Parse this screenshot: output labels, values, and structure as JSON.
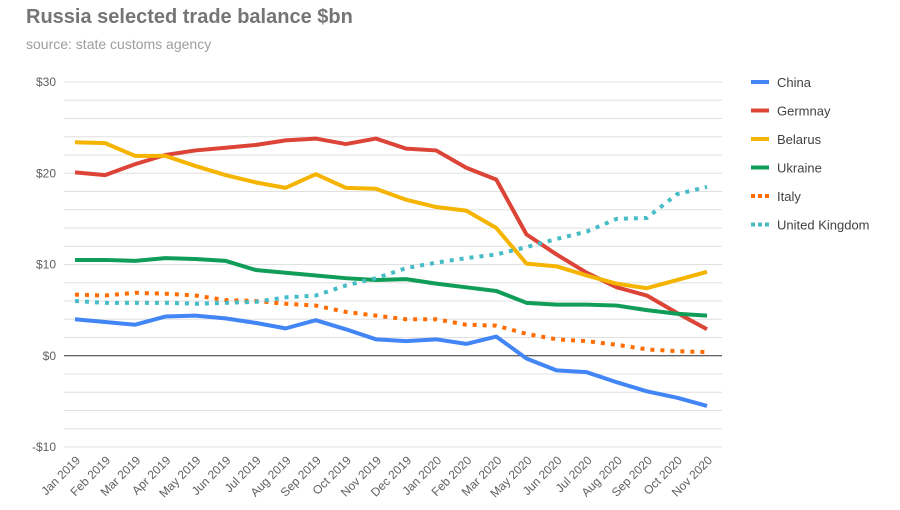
{
  "chart_data": {
    "type": "line",
    "title": "Russia selected trade balance $bn",
    "subtitle": "source: state customs agency",
    "xlabel": "",
    "ylabel": "",
    "ylim": [
      -10,
      30
    ],
    "yticks": [
      30,
      20,
      10,
      0,
      -10
    ],
    "ytick_labels": [
      "$30",
      "$20",
      "$10",
      "$0",
      "-$10"
    ],
    "grid": true,
    "legend_position": "right",
    "categories": [
      "Jan 2019",
      "Feb 2019",
      "Mar 2019",
      "Apr 2019",
      "May 2019",
      "Jun 2019",
      "Jul 2019",
      "Aug 2019",
      "Sep 2019",
      "Oct 2019",
      "Nov 2019",
      "Dec 2019",
      "Jan 2020",
      "Feb 2020",
      "Mar 2020",
      "May 2020",
      "Jun 2020",
      "Jul 2020",
      "Aug 2020",
      "Sep 2020",
      "Oct 2020",
      "Nov 2020"
    ],
    "series": [
      {
        "name": "China",
        "color": "#4285f4",
        "dash": false,
        "values": [
          4.0,
          3.7,
          3.4,
          4.3,
          4.4,
          4.1,
          3.6,
          3.0,
          3.9,
          2.9,
          1.8,
          1.6,
          1.8,
          1.3,
          2.1,
          -0.3,
          -1.6,
          -1.8,
          -2.9,
          -3.9,
          -4.6,
          -5.5
        ]
      },
      {
        "name": "Germnay",
        "color": "#db4437",
        "dash": false,
        "values": [
          20.1,
          19.8,
          21.0,
          22.0,
          22.5,
          22.8,
          23.1,
          23.6,
          23.8,
          23.2,
          23.8,
          22.7,
          22.5,
          20.6,
          19.3,
          13.3,
          11.1,
          9.1,
          7.5,
          6.6,
          4.7,
          2.9
        ]
      },
      {
        "name": "Belarus",
        "color": "#f4b400",
        "dash": false,
        "values": [
          23.4,
          23.3,
          21.9,
          21.9,
          20.8,
          19.8,
          19.0,
          18.4,
          19.9,
          18.4,
          18.3,
          17.1,
          16.3,
          15.9,
          14.0,
          10.1,
          9.8,
          8.8,
          7.9,
          7.4,
          8.3,
          9.2
        ]
      },
      {
        "name": "Ukraine",
        "color": "#0f9d58",
        "dash": false,
        "values": [
          10.5,
          10.5,
          10.4,
          10.7,
          10.6,
          10.4,
          9.4,
          9.1,
          8.8,
          8.5,
          8.3,
          8.4,
          7.9,
          7.5,
          7.1,
          5.8,
          5.6,
          5.6,
          5.5,
          5.0,
          4.6,
          4.4
        ]
      },
      {
        "name": "Italy",
        "color": "#ff6d00",
        "dash": true,
        "values": [
          6.7,
          6.6,
          6.9,
          6.8,
          6.6,
          6.1,
          6.0,
          5.7,
          5.5,
          4.8,
          4.4,
          4.0,
          4.0,
          3.4,
          3.3,
          2.4,
          1.8,
          1.6,
          1.2,
          0.7,
          0.5,
          0.4
        ]
      },
      {
        "name": "United Kingdom",
        "color": "#46bdc6",
        "dash": true,
        "values": [
          6.0,
          5.8,
          5.8,
          5.8,
          5.7,
          5.8,
          5.9,
          6.4,
          6.6,
          7.7,
          8.5,
          9.6,
          10.2,
          10.7,
          11.1,
          11.9,
          12.8,
          13.6,
          15.0,
          15.1,
          17.7,
          18.5
        ]
      }
    ]
  }
}
